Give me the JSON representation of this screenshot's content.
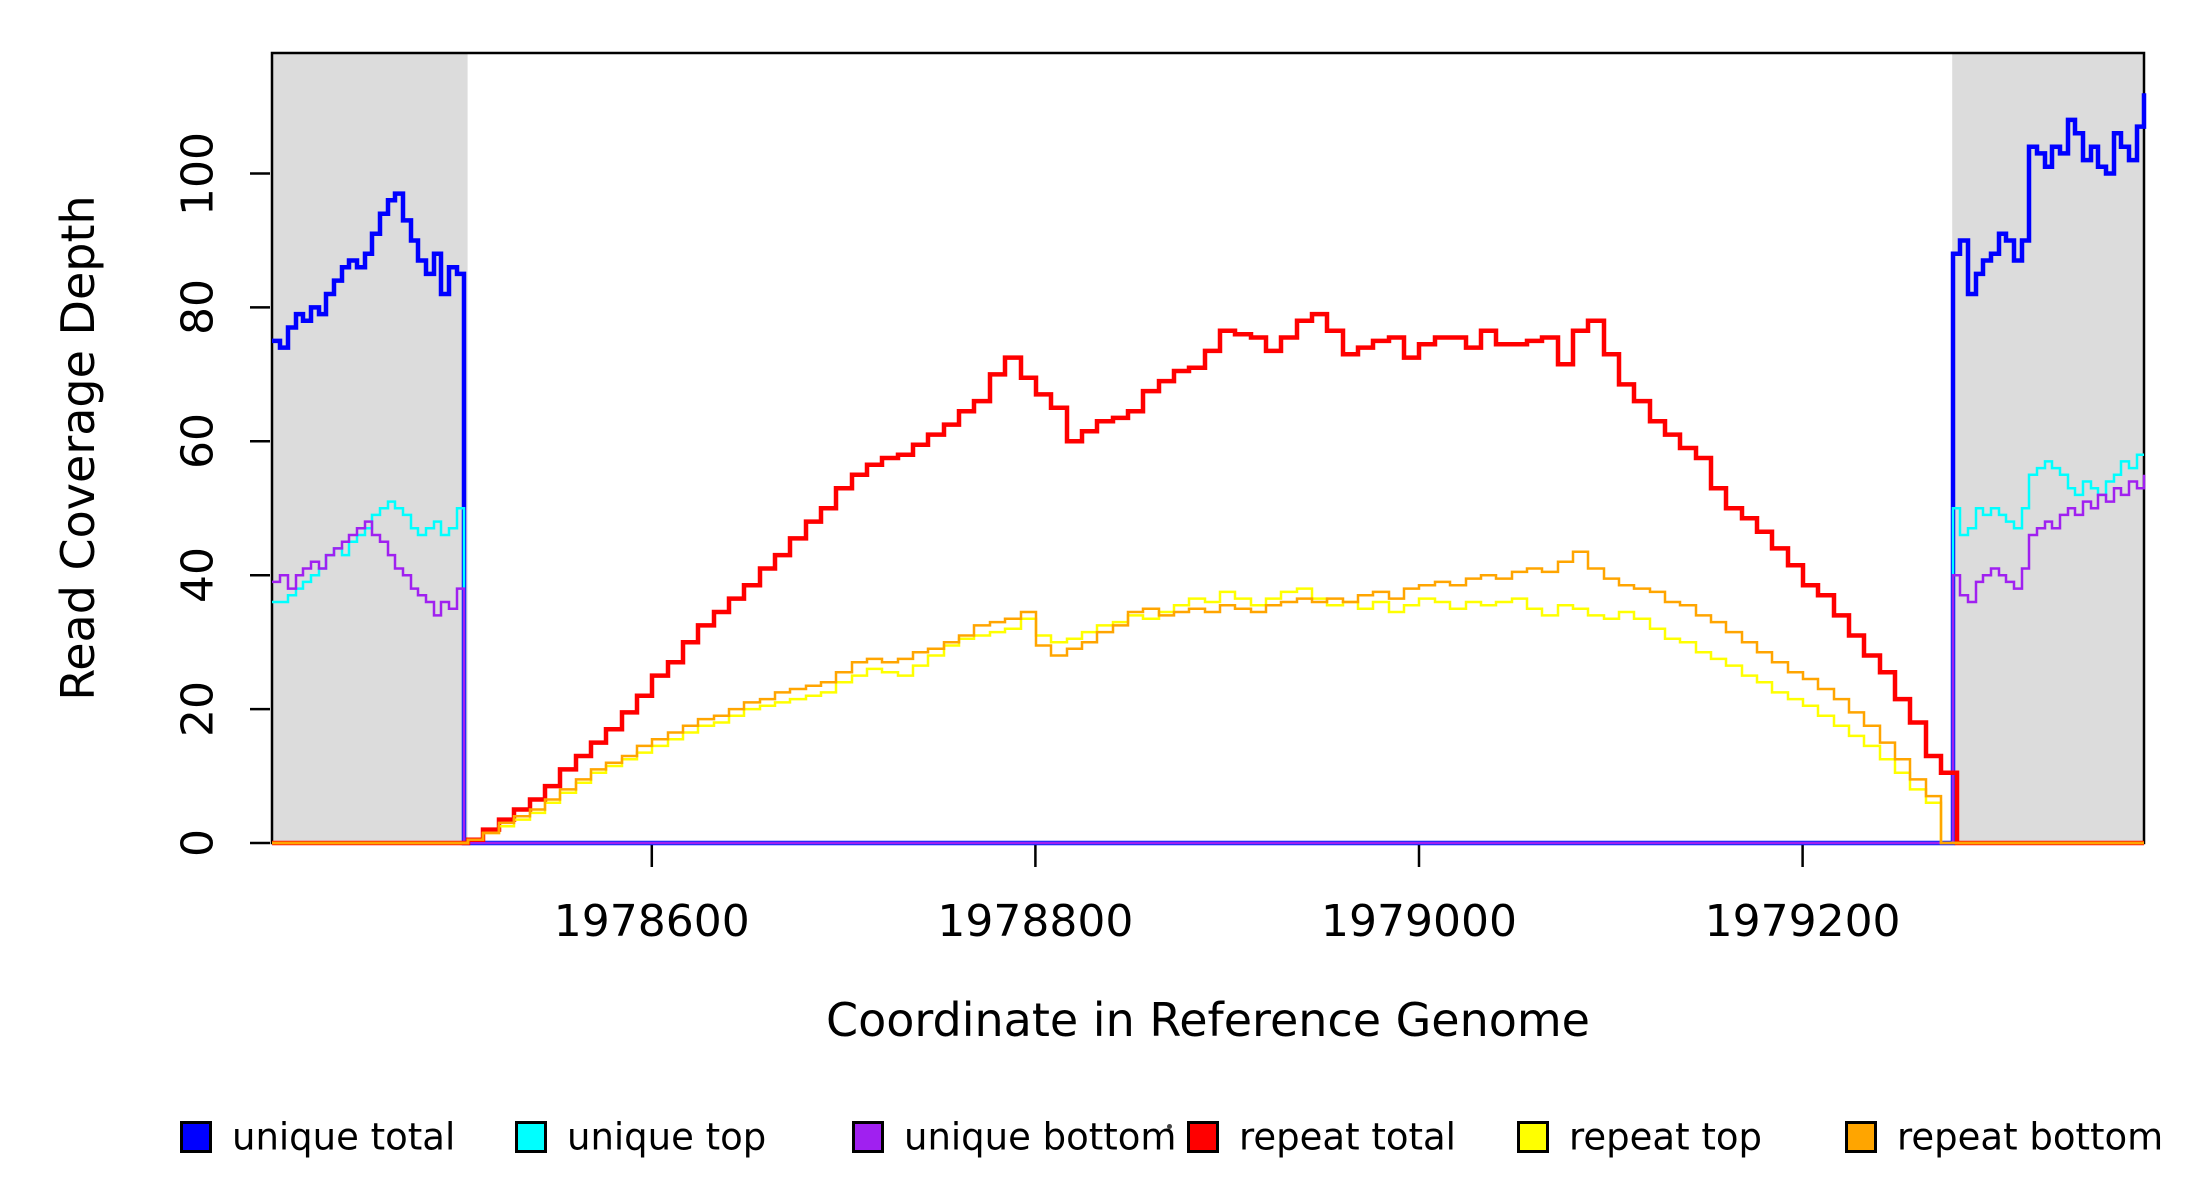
{
  "chart_data": {
    "type": "line",
    "title": "",
    "xlabel": "Coordinate in Reference Genome",
    "ylabel": "Read Coverage Depth",
    "xlim": [
      1978402,
      1979378
    ],
    "ylim": [
      0,
      118
    ],
    "x_ticks": [
      1978600,
      1978800,
      1979000,
      1979200
    ],
    "y_ticks": [
      0,
      20,
      40,
      60,
      80,
      100
    ],
    "grid": false,
    "legend_position": "bottom",
    "plot_bg": "#FFFFFF",
    "shaded_regions": [
      {
        "name": "left-flank",
        "start": 1978402,
        "end": 1978504,
        "color": "#DCDCDC"
      },
      {
        "name": "right-flank",
        "start": 1979278,
        "end": 1979378,
        "color": "#DCDCDC"
      }
    ],
    "series": [
      {
        "name": "unique total",
        "color": "#0000FF",
        "width": 4.5,
        "segments": [
          {
            "start": 1978402,
            "step": 4,
            "values": [
              75,
              74,
              77,
              79,
              78,
              80,
              79,
              82,
              84,
              86,
              87,
              86,
              88,
              91,
              94,
              96,
              97,
              93,
              90,
              87,
              85,
              88,
              82,
              86,
              85,
              90
            ]
          },
          {
            "start": 1979278,
            "step": 4,
            "values": [
              88,
              90,
              82,
              85,
              87,
              88,
              91,
              90,
              87,
              90,
              104,
              103,
              101,
              104,
              103,
              108,
              106,
              102,
              104,
              101,
              100,
              106,
              104,
              102,
              107,
              112
            ]
          }
        ]
      },
      {
        "name": "unique top",
        "color": "#00FFFF",
        "width": 2.5,
        "segments": [
          {
            "start": 1978402,
            "step": 4,
            "values": [
              36,
              36,
              37,
              38,
              39,
              40,
              41,
              43,
              44,
              43,
              45,
              46,
              47,
              49,
              50,
              51,
              50,
              49,
              47,
              46,
              47,
              48,
              46,
              47,
              50,
              51
            ]
          },
          {
            "start": 1979278,
            "step": 4,
            "values": [
              50,
              46,
              47,
              50,
              49,
              50,
              49,
              48,
              47,
              50,
              55,
              56,
              57,
              56,
              55,
              53,
              52,
              54,
              53,
              52,
              54,
              55,
              57,
              56,
              58,
              58
            ]
          }
        ]
      },
      {
        "name": "unique bottom",
        "color": "#A020F0",
        "width": 2.5,
        "segments": [
          {
            "start": 1978402,
            "step": 4,
            "values": [
              39,
              40,
              38,
              40,
              41,
              42,
              41,
              43,
              44,
              45,
              46,
              47,
              48,
              46,
              45,
              43,
              41,
              40,
              38,
              37,
              36,
              34,
              36,
              35,
              38,
              38
            ]
          },
          {
            "start": 1979278,
            "step": 4,
            "values": [
              40,
              37,
              36,
              39,
              40,
              41,
              40,
              39,
              38,
              41,
              46,
              47,
              48,
              47,
              49,
              50,
              49,
              51,
              50,
              52,
              51,
              53,
              52,
              54,
              53,
              55
            ]
          }
        ]
      },
      {
        "name": "repeat total",
        "color": "#FF0000",
        "width": 4.5,
        "segments": [
          {
            "start": 1978504,
            "step": 8,
            "values": [
              0.5,
              2,
              3.5,
              5,
              6.5,
              8.5,
              11,
              13,
              15,
              17,
              19.5,
              22,
              25,
              27,
              30,
              32.5,
              34.5,
              36.5,
              38.5,
              41,
              43,
              45.5,
              48,
              50,
              53,
              55,
              56.5,
              57.5,
              58,
              59.5,
              61,
              62.5,
              64.5,
              66,
              70,
              72.5,
              69.5,
              67,
              65,
              60,
              61.5,
              63,
              63.5,
              64.5,
              67.5,
              69,
              70.5,
              71,
              73.5,
              76.5,
              76,
              75.5,
              73.5,
              75.5,
              78,
              79,
              76.5,
              73,
              74,
              75,
              75.5,
              72.5,
              74.5,
              75.5,
              75.5,
              74,
              76.5,
              74.5,
              74.5,
              75,
              75.5,
              71.5,
              76.5,
              78,
              73,
              68.5,
              66,
              63,
              61,
              59,
              57.5,
              53,
              50,
              48.5,
              46.5,
              44,
              41.5,
              38.5,
              37,
              34,
              31,
              28,
              25.5,
              21.5,
              18,
              13,
              10.5,
              7
            ]
          }
        ]
      },
      {
        "name": "repeat top",
        "color": "#FFFF00",
        "width": 2.5,
        "segments": [
          {
            "start": 1978504,
            "step": 8,
            "values": [
              0.5,
              1.5,
              2.5,
              3.5,
              4.5,
              6,
              7.5,
              9,
              10.5,
              11.5,
              12.5,
              13.5,
              14.5,
              15.5,
              16.5,
              17.5,
              18,
              19,
              20,
              20.5,
              21,
              21.5,
              22,
              22.5,
              24,
              25,
              26,
              25.5,
              25,
              26.5,
              28,
              29.5,
              30.5,
              31,
              31.5,
              32,
              33.5,
              31,
              30,
              30.5,
              31.5,
              32.5,
              33,
              34,
              33.5,
              34.5,
              35.5,
              36.5,
              36,
              37.5,
              36.5,
              35.5,
              36.5,
              37.5,
              38,
              36.5,
              35.5,
              36,
              35,
              36,
              34.5,
              35.5,
              36.5,
              36,
              35,
              36,
              35.5,
              36,
              36.5,
              35,
              34,
              35.5,
              35,
              34,
              33.5,
              34.5,
              33.5,
              32,
              30.5,
              30,
              28.5,
              27.5,
              26.5,
              25,
              24,
              22.5,
              21.5,
              20.5,
              19,
              17.5,
              16,
              14.5,
              12.5,
              10.5,
              8,
              6,
              3
            ]
          }
        ]
      },
      {
        "name": "repeat bottom",
        "color": "#FFA500",
        "width": 2.5,
        "segments": [
          {
            "start": 1978504,
            "step": 8,
            "values": [
              0.5,
              1.5,
              3,
              4,
              5,
              6.5,
              8,
              9.5,
              11,
              12,
              13,
              14.5,
              15.5,
              16.5,
              17.5,
              18.5,
              19,
              20,
              21,
              21.5,
              22.5,
              23,
              23.5,
              24,
              25.5,
              27,
              27.5,
              27,
              27.5,
              28.5,
              29,
              30,
              31,
              32.5,
              33,
              33.5,
              34.5,
              29.5,
              28,
              29,
              30,
              31.5,
              32.5,
              34.5,
              35,
              34,
              34.5,
              35,
              34.5,
              35.5,
              35,
              34.5,
              35.5,
              36,
              36.5,
              36,
              36.5,
              36,
              37,
              37.5,
              36.5,
              38,
              38.5,
              39,
              38.5,
              39.5,
              40,
              39.5,
              40.5,
              41,
              40.5,
              42,
              43.5,
              41,
              39.5,
              38.5,
              38,
              37.5,
              36,
              35.5,
              34,
              33,
              31.5,
              30,
              28.5,
              27,
              25.5,
              24.5,
              23,
              21.5,
              19.5,
              17.5,
              15,
              12.5,
              9.5,
              7,
              4
            ]
          }
        ]
      }
    ],
    "legend": {
      "items": [
        {
          "label": "unique total",
          "color": "#0000FF"
        },
        {
          "label": "unique top",
          "color": "#00FFFF"
        },
        {
          "label": "unique bottom",
          "color": "#A020F0"
        },
        {
          "label": "repeat total",
          "color": "#FF0000"
        },
        {
          "label": "repeat top",
          "color": "#FFFF00"
        },
        {
          "label": "repeat bottom",
          "color": "#FFA500"
        }
      ]
    }
  }
}
